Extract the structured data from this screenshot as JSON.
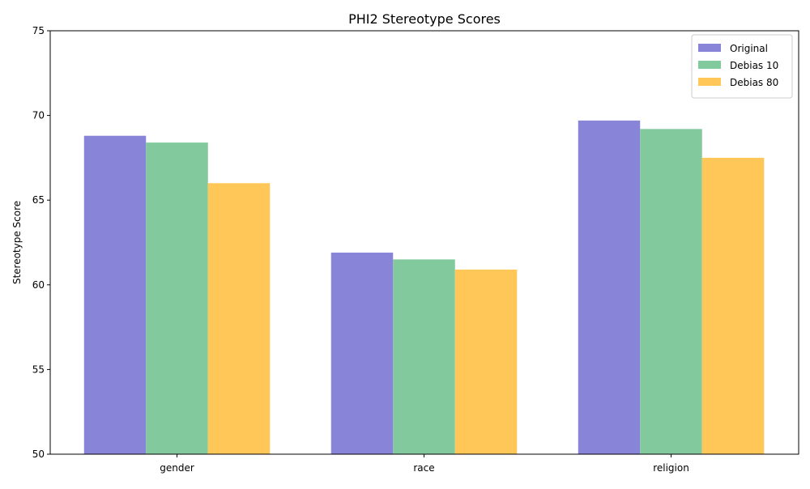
{
  "chart_data": {
    "type": "bar",
    "title": "PHI2 Stereotype Scores",
    "xlabel": "",
    "ylabel": "Stereotype Score",
    "categories": [
      "gender",
      "race",
      "religion"
    ],
    "ylim": [
      50,
      75
    ],
    "yticks": [
      50,
      55,
      60,
      65,
      70,
      75
    ],
    "grid": false,
    "legend_position": "top-right",
    "series": [
      {
        "name": "Original",
        "color": "#8884d8",
        "values": [
          68.8,
          61.9,
          69.7
        ]
      },
      {
        "name": "Debias 10",
        "color": "#82ca9d",
        "values": [
          68.4,
          61.5,
          69.2
        ]
      },
      {
        "name": "Debias 80",
        "color": "#ffc658",
        "values": [
          66.0,
          60.9,
          67.5
        ]
      }
    ]
  }
}
